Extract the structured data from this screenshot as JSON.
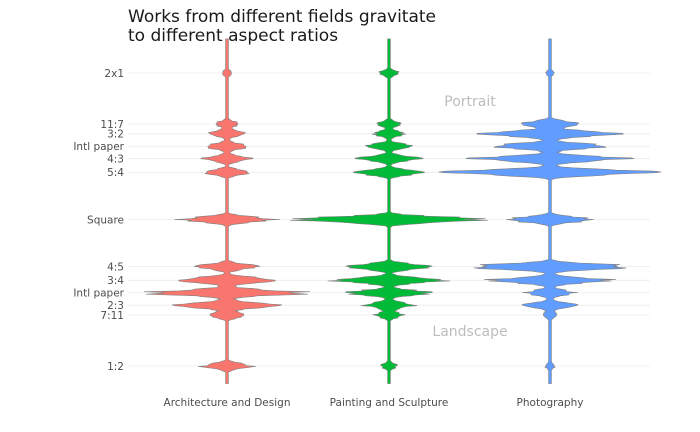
{
  "chart_data": {
    "type": "violin",
    "title_lines": [
      "Works from different fields gravitate",
      "to different aspect ratios"
    ],
    "ylabel": "",
    "xlabel": "",
    "y_scale": "log2 (aspect ratio, width / height)",
    "ylim": [
      0.46,
      2.35
    ],
    "grid": true,
    "legend": "none",
    "y_ticks": [
      {
        "label": "2x1",
        "ratio": 2.0
      },
      {
        "label": "11:7",
        "ratio": 1.5714
      },
      {
        "label": "3:2",
        "ratio": 1.5
      },
      {
        "label": "Intl paper",
        "ratio": 1.4142
      },
      {
        "label": "4:3",
        "ratio": 1.3333
      },
      {
        "label": "5:4",
        "ratio": 1.25
      },
      {
        "label": "Square",
        "ratio": 1.0
      },
      {
        "label": "4:5",
        "ratio": 0.8
      },
      {
        "label": "3:4",
        "ratio": 0.75
      },
      {
        "label": "Intl paper",
        "ratio": 0.7071
      },
      {
        "label": "2:3",
        "ratio": 0.6667
      },
      {
        "label": "7:11",
        "ratio": 0.6364
      },
      {
        "label": "1:2",
        "ratio": 0.5
      }
    ],
    "categories": [
      "Architecture and Design",
      "Painting and Sculpture",
      "Photography"
    ],
    "series": [
      {
        "name": "Architecture and Design",
        "color": "#F8766D",
        "density_peaks": [
          {
            "ratio": 2.0,
            "width": 0.05
          },
          {
            "ratio": 1.5714,
            "width": 0.12
          },
          {
            "ratio": 1.5,
            "width": 0.18
          },
          {
            "ratio": 1.4142,
            "width": 0.22
          },
          {
            "ratio": 1.3333,
            "width": 0.24
          },
          {
            "ratio": 1.25,
            "width": 0.22
          },
          {
            "ratio": 1.0,
            "width": 0.45
          },
          {
            "ratio": 0.8,
            "width": 0.3
          },
          {
            "ratio": 0.75,
            "width": 0.55
          },
          {
            "ratio": 0.7071,
            "width": 0.8
          },
          {
            "ratio": 0.6667,
            "width": 0.5
          },
          {
            "ratio": 0.6364,
            "width": 0.2
          },
          {
            "ratio": 0.5,
            "width": 0.25
          }
        ]
      },
      {
        "name": "Painting and Sculpture",
        "color": "#00BA38",
        "density_peaks": [
          {
            "ratio": 2.0,
            "width": 0.1
          },
          {
            "ratio": 1.5714,
            "width": 0.12
          },
          {
            "ratio": 1.5,
            "width": 0.15
          },
          {
            "ratio": 1.4142,
            "width": 0.22
          },
          {
            "ratio": 1.3333,
            "width": 0.3
          },
          {
            "ratio": 1.25,
            "width": 0.35
          },
          {
            "ratio": 1.0,
            "width": 1.0
          },
          {
            "ratio": 0.8,
            "width": 0.45
          },
          {
            "ratio": 0.75,
            "width": 0.55
          },
          {
            "ratio": 0.7071,
            "width": 0.4
          },
          {
            "ratio": 0.6667,
            "width": 0.25
          },
          {
            "ratio": 0.6364,
            "width": 0.15
          },
          {
            "ratio": 0.5,
            "width": 0.08
          }
        ]
      },
      {
        "name": "Photography",
        "color": "#619CFF",
        "density_peaks": [
          {
            "ratio": 2.0,
            "width": 0.04
          },
          {
            "ratio": 1.5714,
            "width": 0.3
          },
          {
            "ratio": 1.5,
            "width": 0.7
          },
          {
            "ratio": 1.4142,
            "width": 0.6
          },
          {
            "ratio": 1.3333,
            "width": 0.75
          },
          {
            "ratio": 1.25,
            "width": 1.0
          },
          {
            "ratio": 1.0,
            "width": 0.45
          },
          {
            "ratio": 0.8,
            "width": 0.85
          },
          {
            "ratio": 0.75,
            "width": 0.6
          },
          {
            "ratio": 0.7071,
            "width": 0.25
          },
          {
            "ratio": 0.6667,
            "width": 0.25
          },
          {
            "ratio": 0.6364,
            "width": 0.08
          },
          {
            "ratio": 0.5,
            "width": 0.05
          }
        ]
      }
    ],
    "annotations": [
      {
        "text": "Portrait",
        "ratio": 1.75
      },
      {
        "text": "Landscape",
        "ratio": 0.59
      }
    ]
  }
}
